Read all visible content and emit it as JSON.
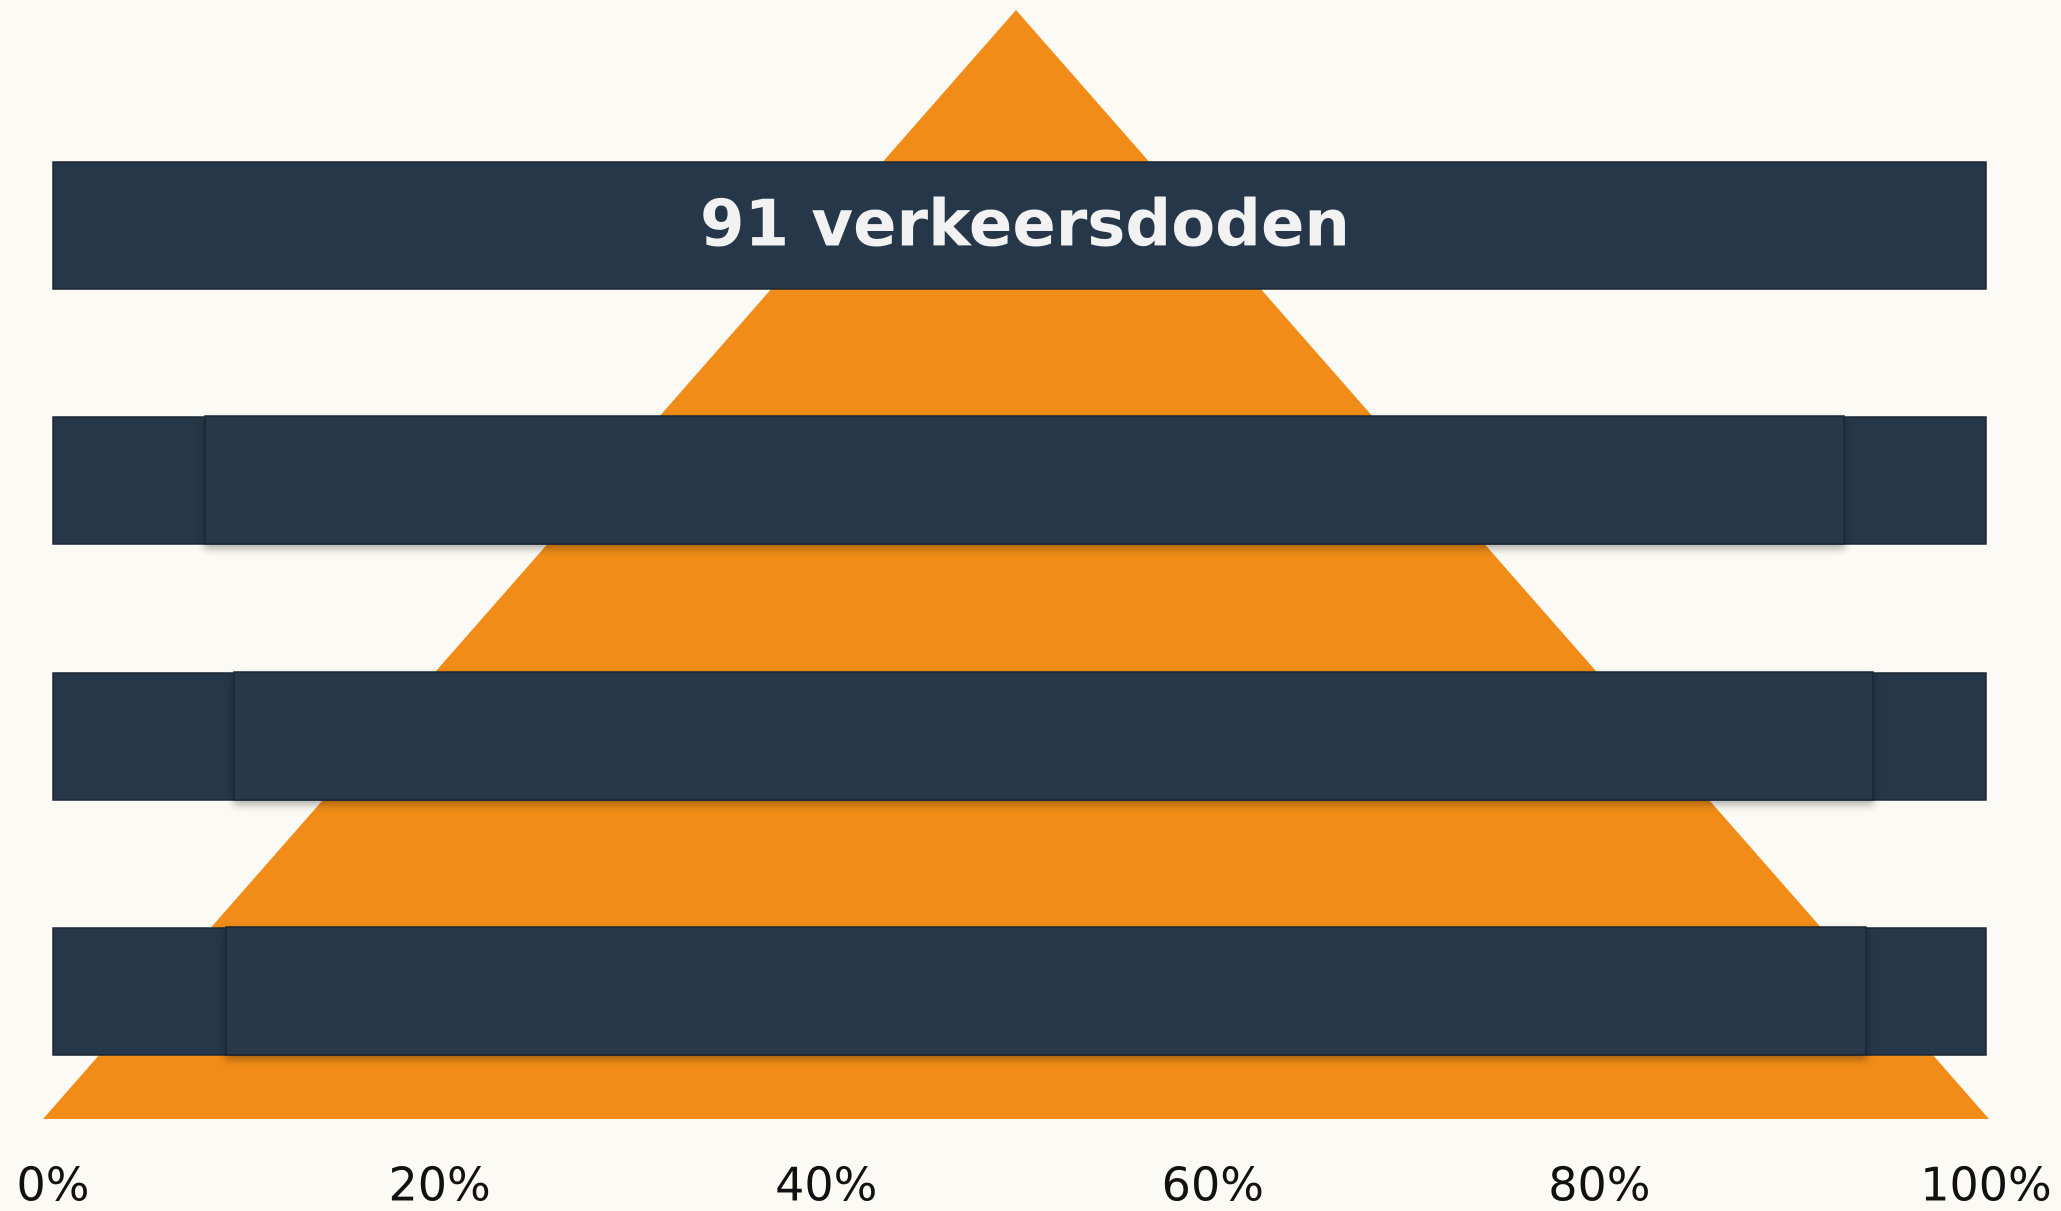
{
  "chart_data": {
    "type": "pyramid",
    "title": "91 verkeersdoden",
    "xlim": [
      0,
      100
    ],
    "xticks": [
      {
        "value": 0,
        "label": "0%"
      },
      {
        "value": 20,
        "label": "20%"
      },
      {
        "value": 40,
        "label": "40%"
      },
      {
        "value": 60,
        "label": "60%"
      },
      {
        "value": 80,
        "label": "80%"
      },
      {
        "value": 100,
        "label": "100%"
      }
    ]
  }
}
